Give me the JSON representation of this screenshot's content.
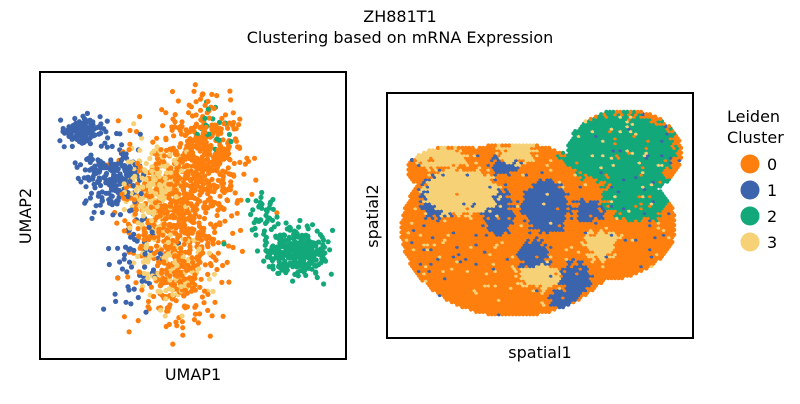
{
  "figure": {
    "title_line1": "ZH881T1",
    "title_line2": "Clustering based on mRNA Expression"
  },
  "palette": {
    "0": "#ff7f0e",
    "1": "#3b64ac",
    "2": "#13a87a",
    "3": "#f7d176"
  },
  "chart_data": [
    {
      "type": "scatter",
      "name": "umap-panel",
      "xlabel": "UMAP1",
      "ylabel": "UMAP2",
      "xlim": [
        0,
        10
      ],
      "ylim": [
        0,
        10
      ],
      "grid": false,
      "clusters": [
        {
          "id": "0",
          "regions": [
            [
              4.6,
              5.4,
              1.5,
              2.6,
              650
            ],
            [
              5.5,
              7.3,
              1.0,
              1.4,
              260
            ],
            [
              4.4,
              2.7,
              1.0,
              1.4,
              140
            ]
          ]
        },
        {
          "id": "1",
          "regions": [
            [
              1.3,
              8.0,
              0.6,
              0.4,
              120
            ],
            [
              2.3,
              6.4,
              0.9,
              1.1,
              210
            ],
            [
              3.2,
              3.5,
              0.9,
              1.6,
              60
            ]
          ]
        },
        {
          "id": "2",
          "regions": [
            [
              8.4,
              3.7,
              0.9,
              0.7,
              300
            ],
            [
              7.4,
              5.0,
              0.5,
              0.7,
              40
            ],
            [
              5.7,
              8.0,
              0.5,
              0.8,
              20
            ]
          ]
        },
        {
          "id": "3",
          "regions": [
            [
              3.7,
              6.0,
              0.9,
              1.3,
              200
            ],
            [
              4.3,
              3.2,
              0.9,
              1.2,
              110
            ]
          ]
        }
      ]
    },
    {
      "type": "scatter",
      "name": "spatial-panel",
      "xlabel": "spatial1",
      "ylabel": "spatial2",
      "xlim": [
        0,
        10
      ],
      "ylim": [
        0,
        10
      ],
      "grid": false,
      "base_cluster": "0",
      "clusters": [
        {
          "id": "2",
          "zones": [
            [
              7.6,
              7.8,
              1.9,
              1.5
            ],
            [
              8.2,
              6.0,
              1.1,
              1.2
            ]
          ]
        },
        {
          "id": "3",
          "zones": [
            [
              2.4,
              6.0,
              1.2,
              1.0
            ],
            [
              1.7,
              7.4,
              0.8,
              0.5
            ],
            [
              5.0,
              2.5,
              0.7,
              0.5
            ],
            [
              7.0,
              3.8,
              0.6,
              0.6
            ],
            [
              4.2,
              7.6,
              0.6,
              0.4
            ]
          ]
        },
        {
          "id": "1",
          "zones": [
            [
              1.6,
              5.8,
              0.6,
              0.9
            ],
            [
              3.6,
              5.2,
              0.5,
              1.0
            ],
            [
              5.2,
              5.4,
              0.8,
              1.1
            ],
            [
              4.8,
              3.3,
              0.5,
              0.7
            ],
            [
              6.2,
              2.4,
              0.5,
              0.7
            ],
            [
              6.6,
              5.2,
              0.5,
              0.5
            ],
            [
              3.9,
              7.1,
              0.5,
              0.4
            ],
            [
              5.8,
              1.6,
              0.5,
              0.4
            ]
          ]
        }
      ]
    }
  ],
  "legend": {
    "title_line1": "Leiden",
    "title_line2": "Cluster",
    "position": "right",
    "items": [
      {
        "label": "0",
        "color": "#ff7f0e"
      },
      {
        "label": "1",
        "color": "#3b64ac"
      },
      {
        "label": "2",
        "color": "#13a87a"
      },
      {
        "label": "3",
        "color": "#f7d176"
      }
    ]
  }
}
